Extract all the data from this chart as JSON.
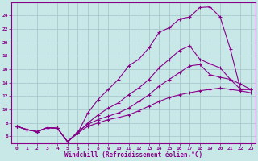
{
  "xlabel": "Windchill (Refroidissement éolien,°C)",
  "background_color": "#c8e8e8",
  "grid_color": "#a8c8cc",
  "line_color": "#880088",
  "xlim": [
    -0.5,
    23.5
  ],
  "ylim": [
    5.0,
    26.0
  ],
  "xticks": [
    0,
    1,
    2,
    3,
    4,
    5,
    6,
    7,
    8,
    9,
    10,
    11,
    12,
    13,
    14,
    15,
    16,
    17,
    18,
    19,
    20,
    21,
    22,
    23
  ],
  "yticks": [
    6,
    8,
    10,
    12,
    14,
    16,
    18,
    20,
    22,
    24
  ],
  "series": [
    [
      [
        0,
        7.5
      ],
      [
        1,
        7.0
      ],
      [
        2,
        6.7
      ],
      [
        3,
        7.3
      ],
      [
        4,
        7.2
      ],
      [
        5,
        5.2
      ],
      [
        6,
        6.5
      ],
      [
        7,
        9.5
      ],
      [
        8,
        11.5
      ],
      [
        9,
        13.0
      ],
      [
        10,
        14.5
      ],
      [
        11,
        16.5
      ],
      [
        12,
        17.5
      ],
      [
        13,
        19.2
      ],
      [
        14,
        21.5
      ],
      [
        15,
        22.2
      ],
      [
        16,
        23.5
      ],
      [
        17,
        23.8
      ],
      [
        18,
        25.2
      ],
      [
        19,
        25.3
      ],
      [
        20,
        23.8
      ],
      [
        21,
        19.0
      ],
      [
        22,
        13.0
      ],
      [
        23,
        13.0
      ]
    ],
    [
      [
        0,
        7.5
      ],
      [
        1,
        7.0
      ],
      [
        2,
        6.7
      ],
      [
        3,
        7.3
      ],
      [
        4,
        7.2
      ],
      [
        5,
        5.2
      ],
      [
        6,
        6.5
      ],
      [
        7,
        8.0
      ],
      [
        8,
        9.2
      ],
      [
        9,
        10.2
      ],
      [
        10,
        11.0
      ],
      [
        11,
        12.2
      ],
      [
        12,
        13.2
      ],
      [
        13,
        14.5
      ],
      [
        14,
        16.2
      ],
      [
        15,
        17.5
      ],
      [
        16,
        18.8
      ],
      [
        17,
        19.5
      ],
      [
        18,
        17.5
      ],
      [
        19,
        16.8
      ],
      [
        20,
        16.2
      ],
      [
        21,
        14.5
      ],
      [
        22,
        13.0
      ],
      [
        23,
        13.0
      ]
    ],
    [
      [
        0,
        7.5
      ],
      [
        1,
        7.0
      ],
      [
        2,
        6.7
      ],
      [
        3,
        7.3
      ],
      [
        4,
        7.2
      ],
      [
        5,
        5.2
      ],
      [
        6,
        6.7
      ],
      [
        7,
        7.8
      ],
      [
        8,
        8.5
      ],
      [
        9,
        9.0
      ],
      [
        10,
        9.5
      ],
      [
        11,
        10.2
      ],
      [
        12,
        11.2
      ],
      [
        13,
        12.2
      ],
      [
        14,
        13.5
      ],
      [
        15,
        14.5
      ],
      [
        16,
        15.5
      ],
      [
        17,
        16.5
      ],
      [
        18,
        16.7
      ],
      [
        19,
        15.2
      ],
      [
        20,
        14.8
      ],
      [
        21,
        14.5
      ],
      [
        22,
        13.8
      ],
      [
        23,
        13.0
      ]
    ],
    [
      [
        0,
        7.5
      ],
      [
        1,
        7.0
      ],
      [
        2,
        6.7
      ],
      [
        3,
        7.3
      ],
      [
        4,
        7.2
      ],
      [
        5,
        5.2
      ],
      [
        6,
        6.5
      ],
      [
        7,
        7.5
      ],
      [
        8,
        8.0
      ],
      [
        9,
        8.5
      ],
      [
        10,
        8.8
      ],
      [
        11,
        9.2
      ],
      [
        12,
        9.8
      ],
      [
        13,
        10.5
      ],
      [
        14,
        11.2
      ],
      [
        15,
        11.8
      ],
      [
        16,
        12.2
      ],
      [
        17,
        12.5
      ],
      [
        18,
        12.8
      ],
      [
        19,
        13.0
      ],
      [
        20,
        13.2
      ],
      [
        21,
        13.0
      ],
      [
        22,
        12.8
      ],
      [
        23,
        12.5
      ]
    ]
  ]
}
